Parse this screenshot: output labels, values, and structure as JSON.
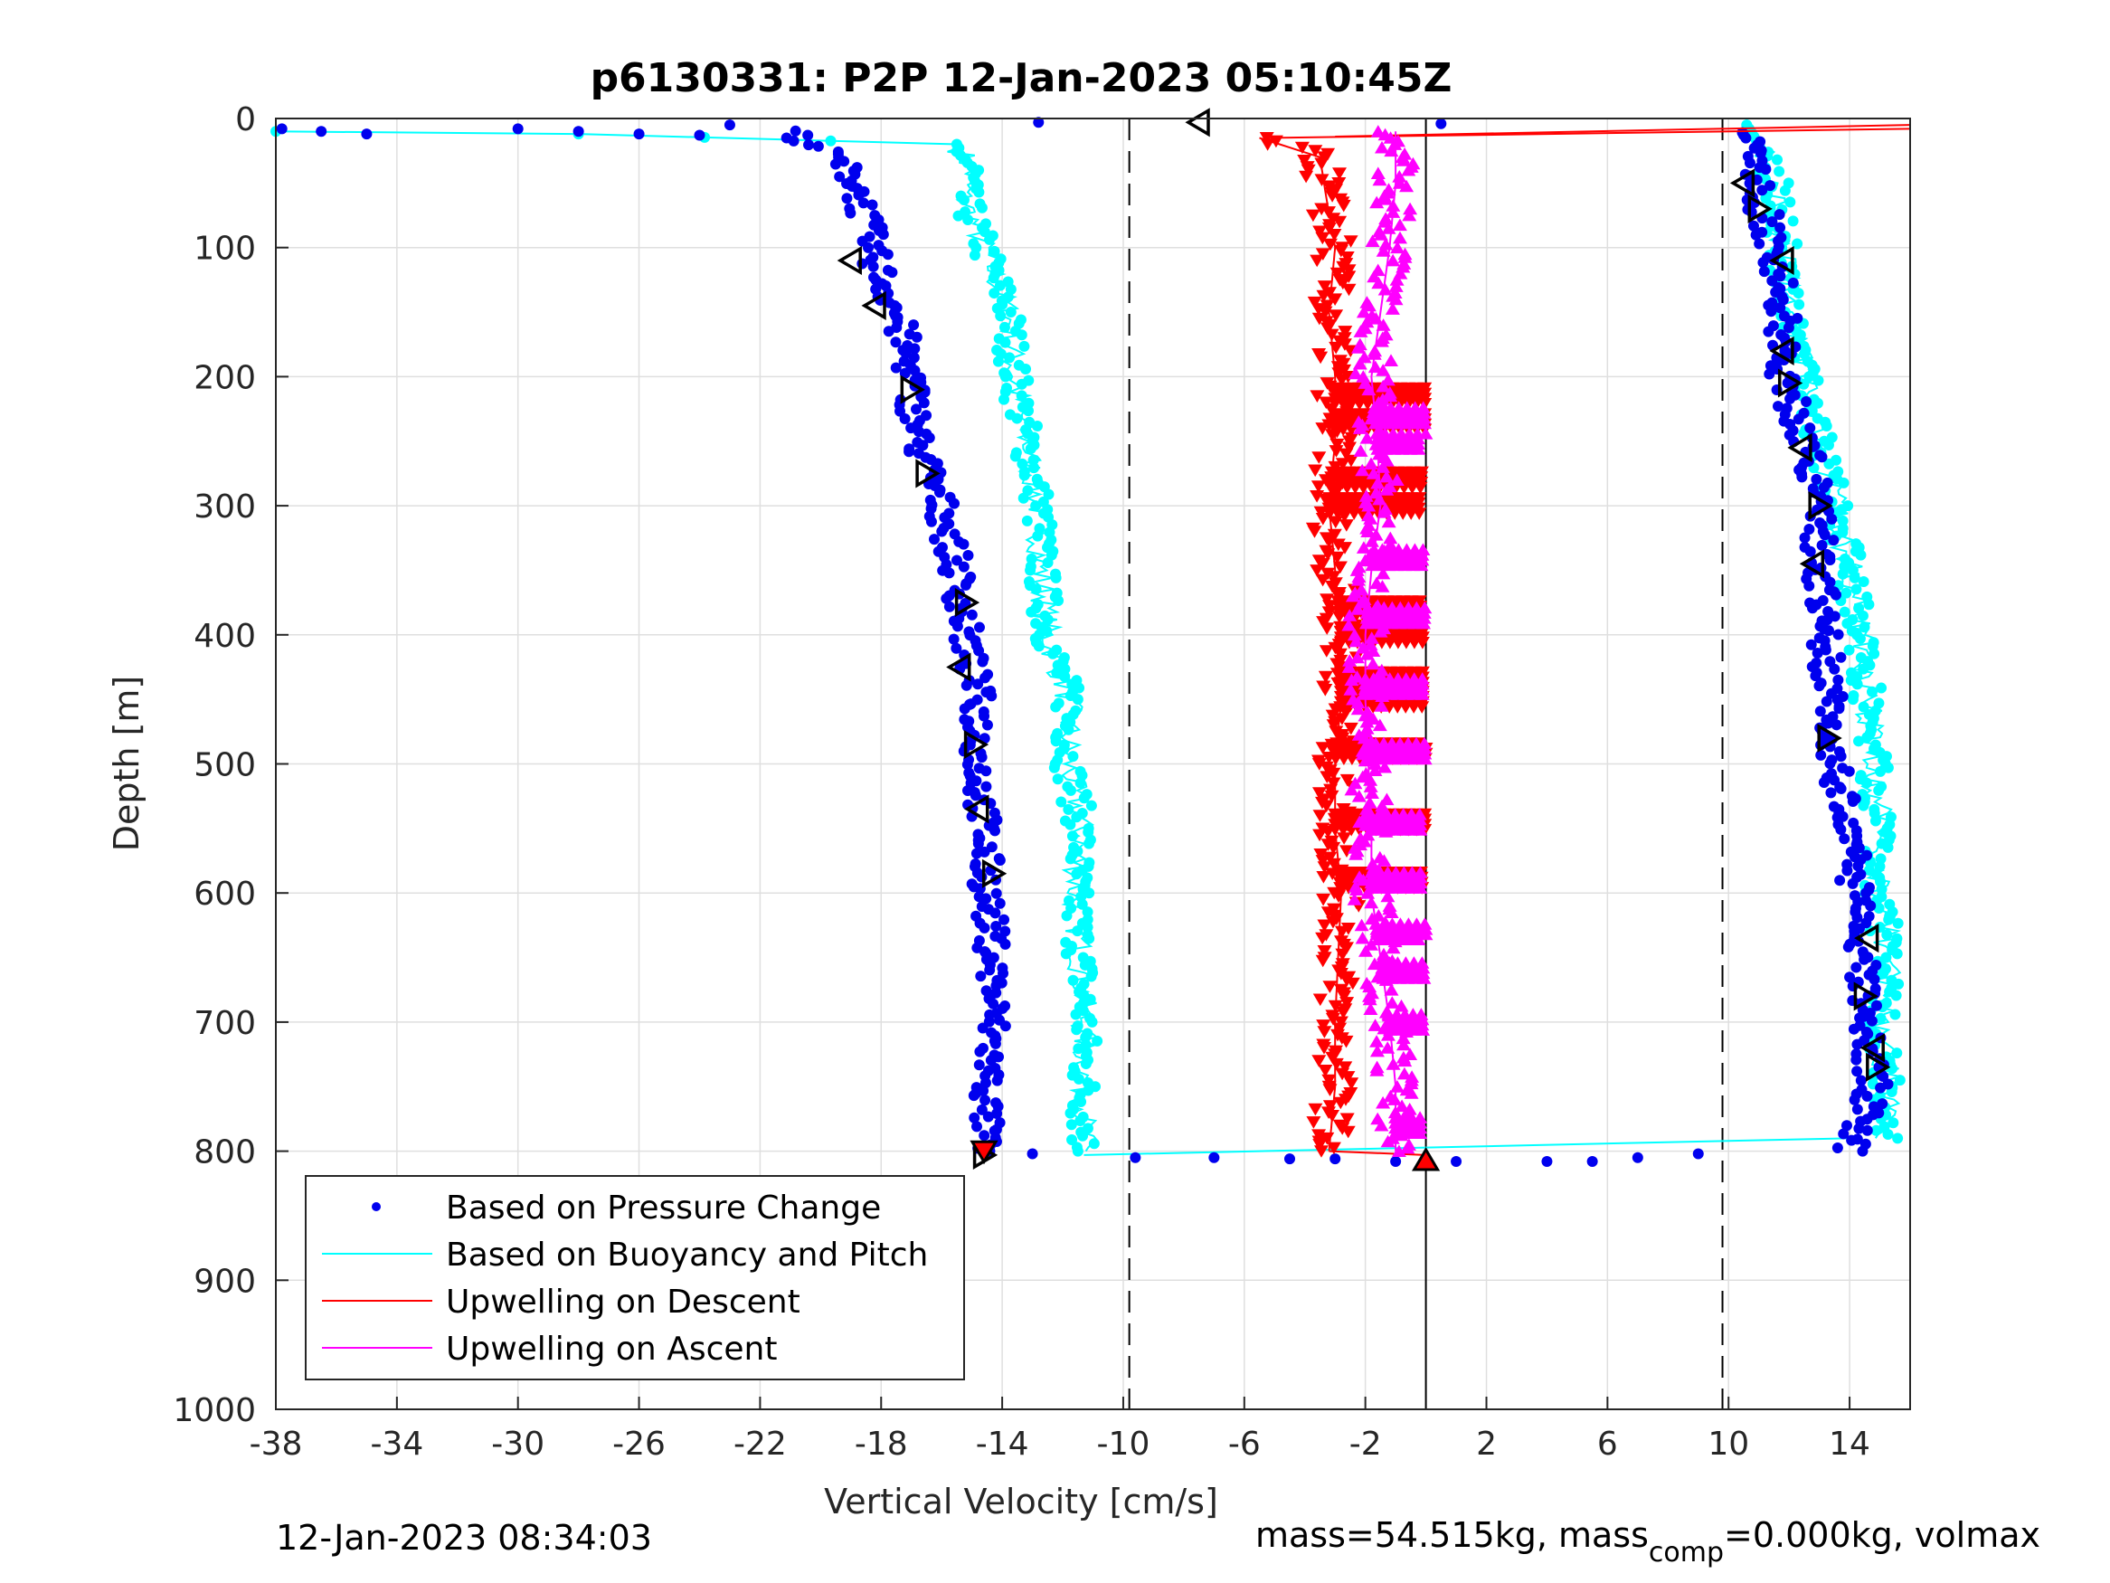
{
  "chart_data": {
    "type": "scatter",
    "title": "p6130331: P2P 12-Jan-2023 05:10:45Z",
    "xlabel": "Vertical Velocity [cm/s]",
    "ylabel": "Depth [m]",
    "xlim": [
      -38,
      16
    ],
    "ylim": [
      1000,
      0
    ],
    "y_reversed": true,
    "grid": true,
    "xticks": [
      -38,
      -34,
      -30,
      -26,
      -22,
      -18,
      -14,
      -10,
      -6,
      -2,
      2,
      6,
      10,
      14
    ],
    "yticks": [
      0,
      100,
      200,
      300,
      400,
      500,
      600,
      700,
      800,
      900,
      1000
    ],
    "xtick_labels": [
      "-38",
      "-34",
      "-30",
      "-26",
      "-22",
      "-18",
      "-14",
      "-10",
      "-6",
      "-2",
      "2",
      "6",
      "10",
      "14"
    ],
    "ytick_labels": [
      "0",
      "100",
      "200",
      "300",
      "400",
      "500",
      "600",
      "700",
      "800",
      "900",
      "1000"
    ],
    "reference_lines": {
      "dashed_x": [
        -9.8,
        9.8
      ],
      "solid_x": [
        0
      ]
    },
    "legend_position": "lower-left",
    "series": [
      {
        "name": "Based on Pressure Change",
        "kind": "dots",
        "color": "#0000ee",
        "descent": {
          "depth": [
            10,
            30,
            50,
            80,
            110,
            150,
            200,
            250,
            300,
            350,
            400,
            450,
            500,
            550,
            600,
            650,
            700,
            750,
            800
          ],
          "velocity": [
            -21.0,
            -19.5,
            -18.8,
            -18.5,
            -18.2,
            -17.5,
            -17.0,
            -16.8,
            -16.0,
            -15.5,
            -15.2,
            -14.8,
            -14.8,
            -14.6,
            -14.5,
            -14.3,
            -14.3,
            -14.5,
            -14.6
          ]
        },
        "ascent": {
          "depth": [
            800,
            780,
            750,
            720,
            700,
            650,
            600,
            550,
            500,
            470,
            450,
            400,
            350,
            300,
            250,
            200,
            150,
            100,
            60,
            30,
            10
          ],
          "velocity": [
            14.0,
            14.3,
            14.8,
            14.6,
            14.5,
            14.5,
            14.2,
            14.0,
            13.5,
            13.2,
            13.3,
            13.2,
            13.0,
            13.0,
            12.5,
            11.8,
            11.8,
            11.5,
            11.0,
            10.8,
            10.5
          ]
        },
        "surface_scatter": {
          "depth": [
            8,
            10,
            12,
            8,
            10,
            12,
            13,
            5,
            3,
            4
          ],
          "velocity": [
            -37.8,
            -36.5,
            -35.0,
            -30.0,
            -28.0,
            -26.0,
            -24.0,
            -23.0,
            -12.8,
            0.5
          ]
        },
        "bottom_scatter": {
          "depth": [
            802,
            805,
            805,
            806,
            806,
            808,
            808,
            808,
            808,
            805,
            802
          ],
          "velocity": [
            -13.0,
            -9.6,
            -7.0,
            -4.5,
            -3.0,
            -1.0,
            1.0,
            4.0,
            5.5,
            7.0,
            9.0
          ]
        }
      },
      {
        "name": "Based on Buoyancy and Pitch",
        "kind": "line+dots",
        "color": "#00ffff",
        "descent": {
          "depth": [
            10,
            12,
            20,
            40,
            60,
            100,
            150,
            200,
            250,
            300,
            350,
            400,
            450,
            500,
            550,
            600,
            650,
            700,
            750,
            800
          ],
          "velocity": [
            -38.0,
            -28.0,
            -15.5,
            -15.0,
            -15.3,
            -14.6,
            -13.8,
            -13.6,
            -13.2,
            -12.8,
            -12.7,
            -12.5,
            -11.8,
            -11.8,
            -11.4,
            -11.6,
            -11.4,
            -11.3,
            -11.3,
            -11.3
          ]
        },
        "ascent": {
          "depth": [
            790,
            760,
            700,
            650,
            600,
            550,
            500,
            450,
            400,
            350,
            300,
            250,
            200,
            150,
            100,
            50,
            20,
            5
          ],
          "velocity": [
            15.2,
            15.3,
            15.0,
            15.3,
            15.0,
            15.0,
            14.8,
            14.6,
            14.4,
            14.0,
            13.6,
            13.0,
            12.5,
            12.0,
            11.8,
            11.5,
            11.0,
            10.6
          ]
        },
        "bottom_link": {
          "depth": [
            803,
            790
          ],
          "velocity": [
            -11.3,
            14.0
          ]
        }
      },
      {
        "name": "Upwelling on Descent",
        "kind": "down-triangles",
        "color": "#ff0000",
        "descent": {
          "depth": [
            15,
            30,
            60,
            100,
            150,
            200,
            250,
            300,
            350,
            400,
            450,
            500,
            550,
            600,
            650,
            700,
            750,
            800
          ],
          "velocity": [
            -5.5,
            -3.5,
            -3.3,
            -3.0,
            -3.2,
            -3.0,
            -3.0,
            -3.2,
            -3.0,
            -2.8,
            -2.8,
            -3.0,
            -3.0,
            -2.8,
            -2.9,
            -3.0,
            -3.0,
            -3.2
          ]
        },
        "surface_spike": {
          "depth": [
            14,
            5
          ],
          "velocity": [
            -3.0,
            16.0
          ]
        },
        "bottom_link": {
          "depth": [
            800,
            803
          ],
          "velocity": [
            -3.2,
            0.0
          ]
        },
        "bands": {
          "depth": [
            215,
            235,
            280,
            300,
            380,
            400,
            435,
            450,
            490,
            545,
            590
          ],
          "velocity_to": [
            0.0
          ]
        }
      },
      {
        "name": "Upwelling on Ascent",
        "kind": "up-triangles",
        "color": "#ff00ff",
        "ascent": {
          "depth": [
            800,
            750,
            700,
            650,
            600,
            550,
            500,
            450,
            400,
            350,
            300,
            250,
            200,
            150,
            100,
            50,
            10
          ],
          "velocity": [
            -1.0,
            -1.0,
            -1.2,
            -1.5,
            -1.8,
            -1.8,
            -1.9,
            -2.0,
            -2.0,
            -1.8,
            -1.5,
            -1.6,
            -1.8,
            -1.5,
            -1.2,
            -1.0,
            -1.0
          ]
        },
        "bands": {
          "depth": [
            230,
            250,
            340,
            385,
            440,
            490,
            545,
            590,
            630,
            660,
            700,
            780
          ],
          "velocity_to": [
            0.0
          ]
        }
      }
    ],
    "markers": {
      "descent_left": {
        "depth": [
          110,
          145,
          425,
          535
        ],
        "velocity": [
          -19.0,
          -18.2,
          -15.4,
          -14.8
        ]
      },
      "descent_right": {
        "depth": [
          210,
          275,
          375,
          485,
          585,
          803
        ],
        "velocity": [
          -17.0,
          -16.5,
          -15.2,
          -14.9,
          -14.3,
          -14.6
        ]
      },
      "ascent_left": {
        "depth": [
          50,
          110,
          180,
          255,
          345,
          635,
          720
        ],
        "velocity": [
          10.5,
          11.8,
          11.8,
          12.4,
          12.8,
          14.6,
          14.8
        ]
      },
      "ascent_right": {
        "depth": [
          70,
          205,
          300,
          480,
          680,
          735
        ],
        "velocity": [
          11.0,
          12.0,
          13.0,
          13.3,
          14.5,
          14.9
        ]
      },
      "surface_left": {
        "depth": [
          3
        ],
        "velocity": [
          -7.5
        ]
      },
      "bottom_red_up": {
        "depth": [
          807
        ],
        "velocity": [
          0.0
        ]
      },
      "bottom_red_down": {
        "depth": [
          800
        ],
        "velocity": [
          -14.6
        ]
      }
    }
  },
  "legend": {
    "items": [
      {
        "label": "Based on Pressure Change",
        "color": "#0000ee",
        "symbol": "dot"
      },
      {
        "label": "Based on Buoyancy and Pitch",
        "color": "#00ffff",
        "symbol": "line"
      },
      {
        "label": "Upwelling on Descent",
        "color": "#ff0000",
        "symbol": "line"
      },
      {
        "label": "Upwelling on Ascent",
        "color": "#ff00ff",
        "symbol": "line"
      }
    ]
  },
  "footer": {
    "timestamp": "12-Jan-2023 08:34:03",
    "mass_prefix": "mass=54.515kg, mass",
    "mass_sub": "comp",
    "mass_suffix": "=0.000kg, volmax"
  }
}
